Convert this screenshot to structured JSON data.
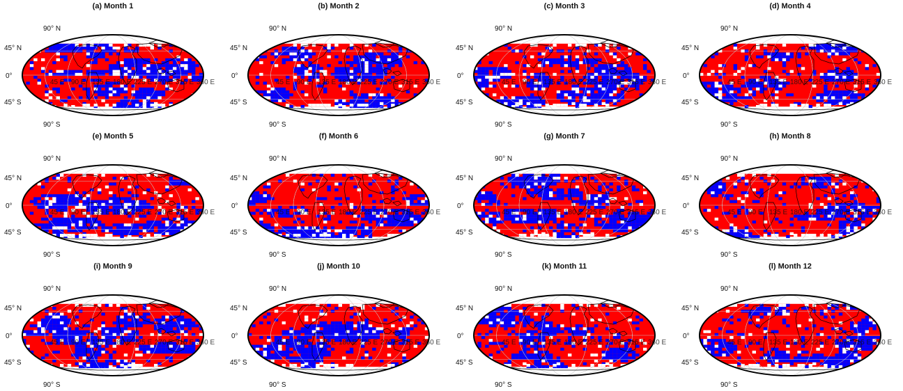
{
  "figure": {
    "panels": [
      {
        "title": "(a) Month 1"
      },
      {
        "title": "(b) Month 2"
      },
      {
        "title": "(c) Month 3"
      },
      {
        "title": "(d) Month 4"
      },
      {
        "title": "(e) Month 5"
      },
      {
        "title": "(f) Month 6"
      },
      {
        "title": "(g) Month 7"
      },
      {
        "title": "(h) Month 8"
      },
      {
        "title": "(i) Month 9"
      },
      {
        "title": "(j) Month 10"
      },
      {
        "title": "(k) Month 11"
      },
      {
        "title": "(l) Month 12"
      }
    ],
    "lat_labels": [
      "90° N",
      "45° N",
      "0°",
      "45° S",
      "90° S"
    ],
    "lon_labels": [
      "45 E",
      "90 E",
      "135 E",
      "180 E",
      "225 E",
      "270 E",
      "315 E",
      "360 E"
    ],
    "colors": {
      "positive": "#ff0000",
      "negative": "#0000ff",
      "missing": "#ffffff",
      "coast": "#000000",
      "frame": "#000000"
    }
  }
}
